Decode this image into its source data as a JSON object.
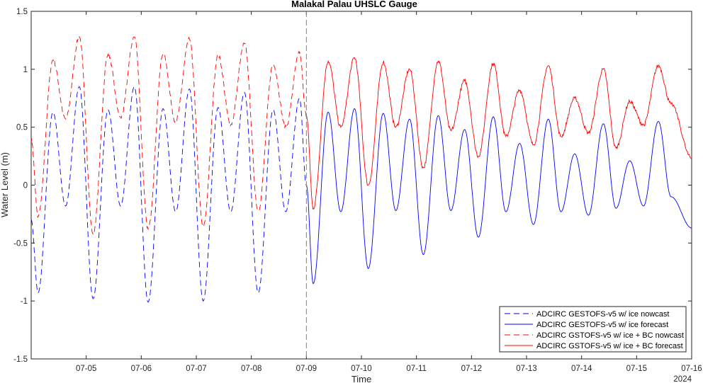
{
  "chart_data": {
    "type": "line",
    "title": "Malakal Palau UHSLC Gauge",
    "xlabel": "Time",
    "ylabel": "Water Level (m)",
    "year_label": "2024",
    "xlim": [
      "2024-07-04 00:00",
      "2024-07-16 00:00"
    ],
    "ylim": [
      -1.5,
      1.5
    ],
    "x_ticks": [
      {
        "date": "2024-07-05",
        "label": "07-05"
      },
      {
        "date": "2024-07-06",
        "label": "07-06"
      },
      {
        "date": "2024-07-07",
        "label": "07-07"
      },
      {
        "date": "2024-07-08",
        "label": "07-08"
      },
      {
        "date": "2024-07-09",
        "label": "07-09"
      },
      {
        "date": "2024-07-10",
        "label": "07-10"
      },
      {
        "date": "2024-07-11",
        "label": "07-11"
      },
      {
        "date": "2024-07-12",
        "label": "07-12"
      },
      {
        "date": "2024-07-13",
        "label": "07-13"
      },
      {
        "date": "2024-07-14",
        "label": "07-14"
      },
      {
        "date": "2024-07-15",
        "label": "07-15"
      },
      {
        "date": "2024-07-16",
        "label": "07-16"
      }
    ],
    "y_ticks": [
      {
        "value": 1.5,
        "label": "1.5"
      },
      {
        "value": 1,
        "label": "1"
      },
      {
        "value": 0.5,
        "label": "0.5"
      },
      {
        "value": 0,
        "label": "0"
      },
      {
        "value": -0.5,
        "label": "-0.5"
      },
      {
        "value": -1,
        "label": "-1"
      },
      {
        "value": -1.5,
        "label": "-1.5"
      }
    ],
    "vertical_marker": {
      "date": "2024-07-09 00:00",
      "style": "dashed"
    },
    "legend_position": "bottom-right",
    "grid": false,
    "series": [
      {
        "name": "ADCIRC GESTOFS-v5 w/ ice nowcast",
        "color": "#0000ff",
        "dash": "dashed",
        "points": [
          [
            "2024-07-04 00:00",
            -0.3
          ],
          [
            "2024-07-04 03:00",
            -0.93
          ],
          [
            "2024-07-04 09:30",
            0.63
          ],
          [
            "2024-07-04 15:00",
            -0.18
          ],
          [
            "2024-07-04 21:00",
            0.85
          ],
          [
            "2024-07-05 03:00",
            -0.98
          ],
          [
            "2024-07-05 09:30",
            0.65
          ],
          [
            "2024-07-05 15:00",
            -0.18
          ],
          [
            "2024-07-05 21:00",
            0.85
          ],
          [
            "2024-07-06 03:00",
            -1.01
          ],
          [
            "2024-07-06 09:30",
            0.66
          ],
          [
            "2024-07-06 15:00",
            -0.23
          ],
          [
            "2024-07-06 21:00",
            0.83
          ],
          [
            "2024-07-07 03:00",
            -1.0
          ],
          [
            "2024-07-07 09:30",
            0.67
          ],
          [
            "2024-07-07 15:00",
            -0.23
          ],
          [
            "2024-07-07 21:00",
            0.8
          ],
          [
            "2024-07-08 03:00",
            -0.93
          ],
          [
            "2024-07-08 09:30",
            0.65
          ],
          [
            "2024-07-08 15:00",
            -0.23
          ],
          [
            "2024-07-08 21:00",
            0.75
          ],
          [
            "2024-07-09 00:00",
            0.0
          ]
        ]
      },
      {
        "name": "ADCIRC GESTOFS-v5 w/ ice forecast",
        "color": "#0000ff",
        "dash": "solid",
        "points": [
          [
            "2024-07-09 00:00",
            0.0
          ],
          [
            "2024-07-09 03:00",
            -0.85
          ],
          [
            "2024-07-09 09:30",
            0.63
          ],
          [
            "2024-07-09 15:00",
            -0.23
          ],
          [
            "2024-07-09 21:00",
            0.66
          ],
          [
            "2024-07-10 03:00",
            -0.72
          ],
          [
            "2024-07-10 09:30",
            0.62
          ],
          [
            "2024-07-10 15:00",
            -0.22
          ],
          [
            "2024-07-10 21:00",
            0.57
          ],
          [
            "2024-07-11 03:00",
            -0.6
          ],
          [
            "2024-07-11 09:30",
            0.6
          ],
          [
            "2024-07-11 15:00",
            -0.22
          ],
          [
            "2024-07-11 21:00",
            0.48
          ],
          [
            "2024-07-12 03:00",
            -0.45
          ],
          [
            "2024-07-12 09:30",
            0.59
          ],
          [
            "2024-07-12 15:00",
            -0.23
          ],
          [
            "2024-07-12 21:00",
            0.36
          ],
          [
            "2024-07-13 03:00",
            -0.34
          ],
          [
            "2024-07-13 09:30",
            0.57
          ],
          [
            "2024-07-13 15:00",
            -0.23
          ],
          [
            "2024-07-13 21:00",
            0.27
          ],
          [
            "2024-07-14 03:00",
            -0.26
          ],
          [
            "2024-07-14 09:30",
            0.53
          ],
          [
            "2024-07-14 15:00",
            -0.2
          ],
          [
            "2024-07-14 21:00",
            0.21
          ],
          [
            "2024-07-15 03:00",
            -0.18
          ],
          [
            "2024-07-15 09:30",
            0.55
          ],
          [
            "2024-07-15 15:00",
            -0.1
          ],
          [
            "2024-07-16 00:00",
            -0.37
          ]
        ]
      },
      {
        "name": "ADCIRC GSTOFS-v5 w/ ice + BC nowcast",
        "color": "#ff0000",
        "dash": "dashed",
        "points": [
          [
            "2024-07-04 00:00",
            0.4
          ],
          [
            "2024-07-04 03:00",
            -0.27
          ],
          [
            "2024-07-04 09:30",
            1.08
          ],
          [
            "2024-07-04 15:00",
            0.57
          ],
          [
            "2024-07-04 21:00",
            1.28
          ],
          [
            "2024-07-05 03:00",
            -0.42
          ],
          [
            "2024-07-05 09:30",
            1.13
          ],
          [
            "2024-07-05 15:00",
            0.58
          ],
          [
            "2024-07-05 21:00",
            1.28
          ],
          [
            "2024-07-06 03:00",
            -0.38
          ],
          [
            "2024-07-06 09:30",
            1.13
          ],
          [
            "2024-07-06 15:00",
            0.55
          ],
          [
            "2024-07-06 21:00",
            1.26
          ],
          [
            "2024-07-07 03:00",
            -0.36
          ],
          [
            "2024-07-07 09:30",
            1.12
          ],
          [
            "2024-07-07 15:00",
            0.52
          ],
          [
            "2024-07-07 21:00",
            1.22
          ],
          [
            "2024-07-08 03:00",
            -0.22
          ],
          [
            "2024-07-08 09:30",
            1.04
          ],
          [
            "2024-07-08 15:00",
            0.5
          ],
          [
            "2024-07-08 21:00",
            1.14
          ],
          [
            "2024-07-09 00:00",
            0.6
          ]
        ]
      },
      {
        "name": "ADCIRC GSTOFS-v5 w/ ice + BC forecast",
        "color": "#ff0000",
        "dash": "solid",
        "points": [
          [
            "2024-07-09 00:00",
            0.6
          ],
          [
            "2024-07-09 03:00",
            -0.2
          ],
          [
            "2024-07-09 09:30",
            1.07
          ],
          [
            "2024-07-09 15:00",
            0.5
          ],
          [
            "2024-07-09 21:00",
            1.1
          ],
          [
            "2024-07-10 03:00",
            0.0
          ],
          [
            "2024-07-10 09:30",
            1.06
          ],
          [
            "2024-07-10 15:00",
            0.5
          ],
          [
            "2024-07-10 21:00",
            1.0
          ],
          [
            "2024-07-11 03:00",
            0.15
          ],
          [
            "2024-07-11 09:30",
            1.07
          ],
          [
            "2024-07-11 15:00",
            0.47
          ],
          [
            "2024-07-11 21:00",
            0.9
          ],
          [
            "2024-07-12 03:00",
            0.25
          ],
          [
            "2024-07-12 09:30",
            1.05
          ],
          [
            "2024-07-12 15:00",
            0.42
          ],
          [
            "2024-07-12 21:00",
            0.82
          ],
          [
            "2024-07-13 03:00",
            0.35
          ],
          [
            "2024-07-13 09:30",
            1.03
          ],
          [
            "2024-07-13 15:00",
            0.42
          ],
          [
            "2024-07-13 21:00",
            0.75
          ],
          [
            "2024-07-14 03:00",
            0.45
          ],
          [
            "2024-07-14 09:30",
            1.0
          ],
          [
            "2024-07-14 15:00",
            0.32
          ],
          [
            "2024-07-14 21:00",
            0.72
          ],
          [
            "2024-07-15 03:00",
            0.52
          ],
          [
            "2024-07-15 09:30",
            1.03
          ],
          [
            "2024-07-15 15:00",
            0.7
          ],
          [
            "2024-07-16 00:00",
            0.23
          ]
        ]
      }
    ]
  }
}
